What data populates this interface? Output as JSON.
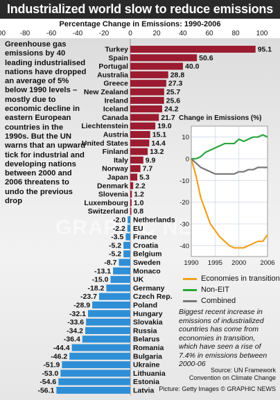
{
  "title": "Industrialized world slow to reduce emissions",
  "subtitle": "Percentage Change in Emissions: 1990-2006",
  "intro": "Greenhouse gas emissions by 40 leading industrialised nations have dropped an average of 5% below 1990 levels – mostly due to economic decline in eastern European countries in the 1990s. But the UN warns that an upward tick for industrial and developing nations between 2000 and 2006 threatens to undo the previous drop",
  "colors": {
    "positive": "#9b1b30",
    "negative": "#2f8fd6",
    "economies_in_transition": "#f0a020",
    "non_eit": "#2aa53a",
    "combined": "#777777",
    "title_bg": "#2a2a2a"
  },
  "chart_data": [
    {
      "type": "bar",
      "title": "Percentage Change in Emissions: 1990-2006",
      "xlim": [
        -100,
        100
      ],
      "xticks": [
        "-100",
        "-80",
        "-60",
        "-40",
        "-20",
        "0",
        "20",
        "40",
        "60",
        "80",
        "100"
      ],
      "categories": [
        "Turkey",
        "Spain",
        "Portugal",
        "Australia",
        "Greece",
        "New Zealand",
        "Ireland",
        "Iceland",
        "Canada",
        "Liechtenstein",
        "Austria",
        "United States",
        "Finland",
        "Italy",
        "Norway",
        "Japan",
        "Denmark",
        "Slovenia",
        "Luxembourg",
        "Switzerland",
        "Netherlands",
        "EU",
        "France",
        "Croatia",
        "Belgium",
        "Sweden",
        "Monaco",
        "UK",
        "Germany",
        "Czech Rep.",
        "Poland",
        "Hungary",
        "Slovakia",
        "Russia",
        "Belarus",
        "Romania",
        "Bulgaria",
        "Ukraine",
        "Lithuania",
        "Estonia",
        "Latvia"
      ],
      "values": [
        95.1,
        50.6,
        40.0,
        28.8,
        27.3,
        25.7,
        25.6,
        24.2,
        21.7,
        19.0,
        15.1,
        14.4,
        13.2,
        9.9,
        7.7,
        5.3,
        2.2,
        1.2,
        1.0,
        0.8,
        -2.0,
        -2.2,
        -3.5,
        -5.2,
        -5.2,
        -8.7,
        -13.1,
        -15.0,
        -18.2,
        -23.7,
        -28.9,
        -32.1,
        -33.6,
        -34.2,
        -36.4,
        -44.4,
        -46.2,
        -51.9,
        -53.0,
        -54.6,
        -56.1
      ],
      "labels": [
        "95.1",
        "50.6",
        "40.0",
        "28.8",
        "27.3",
        "25.7",
        "25.6",
        "24.2",
        "21.7",
        "19.0",
        "15.1",
        "14.4",
        "13.2",
        "9.9",
        "7.7",
        "5.3",
        "2.2",
        "1.2",
        "1.0",
        "0.8",
        "-2.0",
        "-2.2",
        "-3.5",
        "-5.2",
        "-5.2",
        "-8.7",
        "-13.1",
        "-15.0",
        "-18.2",
        "-23.7",
        "-28.9",
        "-32.1",
        "-33.6",
        "-34.2",
        "-36.4",
        "-44.4",
        "-46.2",
        "-51.9",
        "-53.0",
        "-54.6",
        "-56.1"
      ]
    },
    {
      "type": "line",
      "title": "Change in Emissions (%)",
      "x": [
        1990,
        1991,
        1992,
        1993,
        1994,
        1995,
        1996,
        1997,
        1998,
        1999,
        2000,
        2001,
        2002,
        2003,
        2004,
        2005,
        2006
      ],
      "xticks": [
        "1990",
        "1995",
        "2000",
        "2006"
      ],
      "yticks": [
        "10",
        "0",
        "-10",
        "-20",
        "-30",
        "-40"
      ],
      "ylim": [
        -45,
        15
      ],
      "grid": true,
      "series": [
        {
          "name": "Economies in transition",
          "values": [
            0,
            -8,
            -18,
            -24,
            -30,
            -33,
            -36,
            -38,
            -40,
            -41,
            -41,
            -41,
            -40,
            -39,
            -38,
            -38,
            -35
          ]
        },
        {
          "name": "Non-EIT",
          "values": [
            0,
            0,
            1,
            3,
            4,
            5,
            6,
            7,
            7,
            7,
            9,
            8,
            9,
            10,
            10,
            11,
            10
          ]
        },
        {
          "name": "Combined",
          "values": [
            0,
            -2,
            -4,
            -5,
            -6,
            -7,
            -7,
            -7,
            -7,
            -7,
            -6,
            -6,
            -5,
            -5,
            -4,
            -4,
            -4
          ]
        }
      ]
    }
  ],
  "note": "Biggest recent increase in emissions of industrialized countries has come from economies in transition, which have seen a rise of 7.4% in emissions between 2000-06",
  "source": "Source: UN Framework Convention on Climate Change",
  "credit": "Picture: Getty Images   © GRAPHIC NEWS",
  "watermark": "GRAPHIC NEWS"
}
